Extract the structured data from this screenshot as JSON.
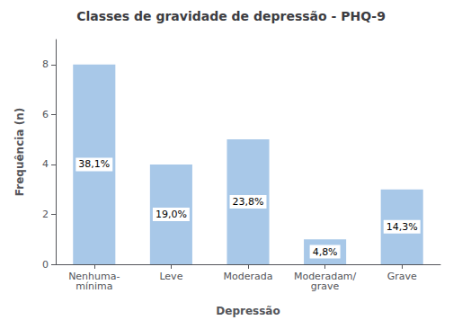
{
  "chart_data": {
    "type": "bar",
    "title": "Classes de gravidade de depressão - PHQ-9",
    "categories": [
      "Nenhuma-\nmínima",
      "Leve",
      "Moderada",
      "Moderadam/\ngrave",
      "Grave"
    ],
    "values": [
      8,
      4,
      5,
      1,
      3
    ],
    "annotations": [
      "38,1%",
      "19,0%",
      "23,8%",
      "4,8%",
      "14,3%"
    ],
    "color": "#a8c8e8",
    "xlabel": "Depressão",
    "ylabel": "Frequência (n)",
    "ylim": [
      0,
      9
    ],
    "yticks": [
      0,
      2,
      4,
      6,
      8
    ],
    "grid": false
  }
}
